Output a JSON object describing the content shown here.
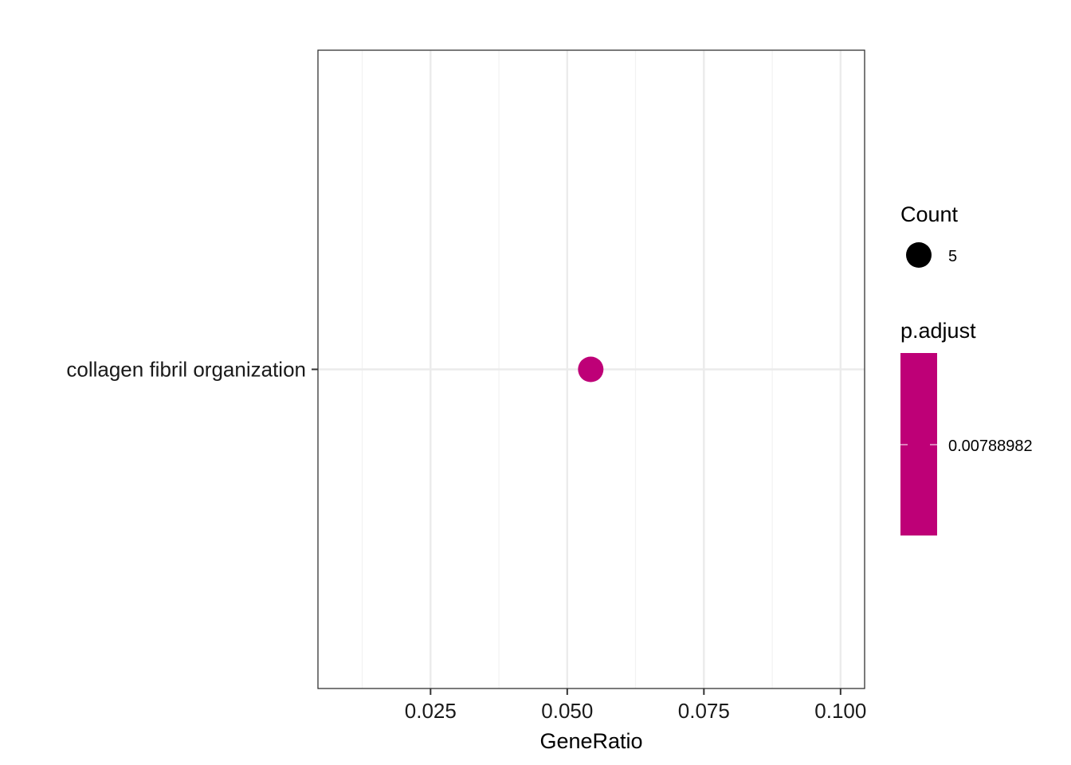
{
  "chart_data": {
    "type": "scatter",
    "title": "",
    "xlabel": "GeneRatio",
    "ylabel": "",
    "categories": [
      "collagen fibril organization"
    ],
    "points": [
      {
        "category": "collagen fibril organization",
        "x": 0.0543,
        "count": 5,
        "p_adjust": 0.00788982
      }
    ],
    "xlim": [
      0.0044,
      0.1044
    ],
    "x_ticks": [
      0.025,
      0.05,
      0.075,
      0.1
    ],
    "x_tick_labels": [
      "0.025",
      "0.050",
      "0.075",
      "0.100"
    ],
    "grid": true,
    "legends": {
      "size": {
        "title": "Count",
        "entries": [
          {
            "label": "5",
            "value": 5
          }
        ]
      },
      "color": {
        "title": "p.adjust",
        "entries": [
          {
            "label": "0.00788982",
            "value": 0.00788982
          }
        ]
      }
    },
    "legend_position": "right",
    "colors": {
      "point": "#BE0077",
      "point_legend": "#000000",
      "grid_major": "#EBEBEB",
      "grid_minor": "#F2F2F2",
      "border": "#333333"
    }
  }
}
